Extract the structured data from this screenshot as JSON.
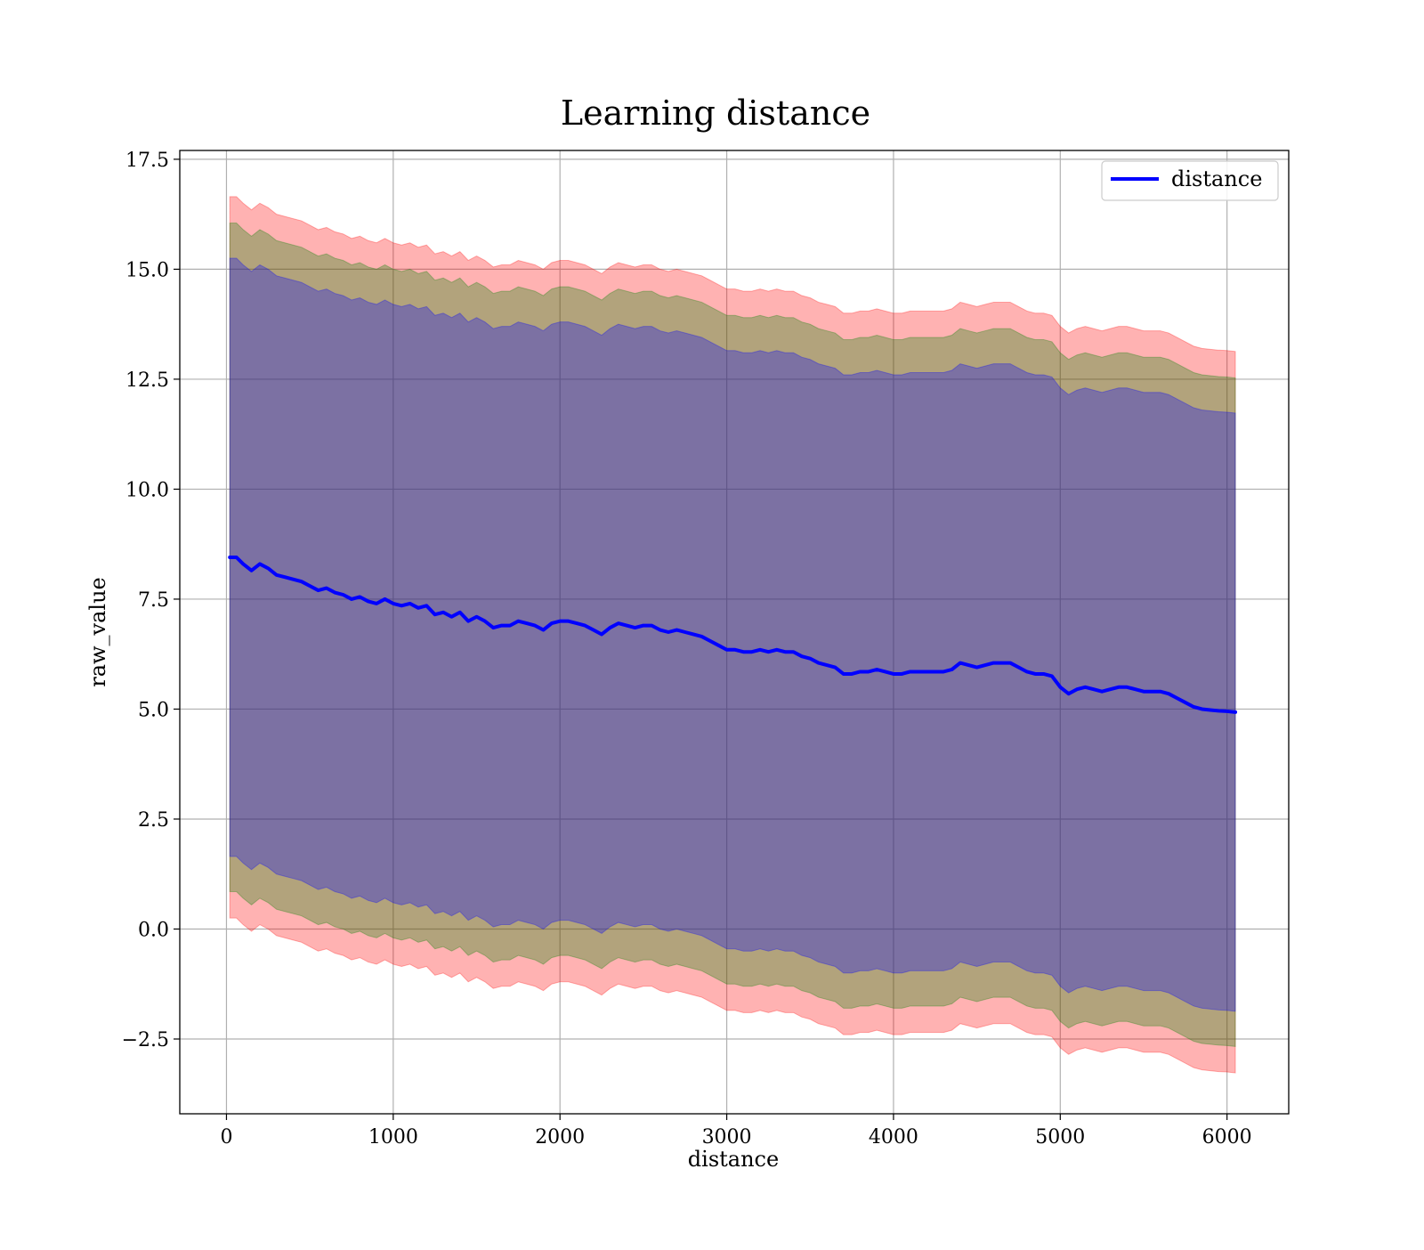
{
  "chart_data": {
    "type": "line",
    "title": "Learning distance",
    "xlabel": "distance",
    "ylabel": "raw_value",
    "xlim": [
      -280,
      6370
    ],
    "ylim": [
      -4.2,
      17.7
    ],
    "x_ticks": [
      0,
      1000,
      2000,
      3000,
      4000,
      5000,
      6000
    ],
    "x_tick_labels": [
      "0",
      "1000",
      "2000",
      "3000",
      "4000",
      "5000",
      "6000"
    ],
    "y_ticks": [
      -2.5,
      0.0,
      2.5,
      5.0,
      7.5,
      10.0,
      12.5,
      15.0,
      17.5
    ],
    "y_tick_labels": [
      "−2.5",
      "0.0",
      "2.5",
      "5.0",
      "7.5",
      "10.0",
      "12.5",
      "15.0",
      "17.5"
    ],
    "grid": true,
    "legend": {
      "placement": "top-right",
      "entries": [
        {
          "label": "distance",
          "color": "#0000ff"
        }
      ]
    },
    "series": [
      {
        "name": "distance",
        "color": "#0000ff",
        "x": [
          20,
          60,
          100,
          150,
          200,
          250,
          300,
          350,
          400,
          450,
          500,
          550,
          600,
          650,
          700,
          750,
          800,
          850,
          900,
          950,
          1000,
          1050,
          1100,
          1150,
          1200,
          1250,
          1300,
          1350,
          1400,
          1450,
          1500,
          1550,
          1600,
          1650,
          1700,
          1750,
          1800,
          1850,
          1900,
          1950,
          2000,
          2050,
          2100,
          2150,
          2200,
          2250,
          2300,
          2350,
          2400,
          2450,
          2500,
          2550,
          2600,
          2650,
          2700,
          2750,
          2800,
          2850,
          2900,
          2950,
          3000,
          3050,
          3100,
          3150,
          3200,
          3250,
          3300,
          3350,
          3400,
          3450,
          3500,
          3550,
          3600,
          3650,
          3700,
          3750,
          3800,
          3850,
          3900,
          3950,
          4000,
          4050,
          4100,
          4150,
          4200,
          4250,
          4300,
          4350,
          4400,
          4450,
          4500,
          4550,
          4600,
          4650,
          4700,
          4750,
          4800,
          4850,
          4900,
          4950,
          5000,
          5050,
          5100,
          5150,
          5200,
          5250,
          5300,
          5350,
          5400,
          5450,
          5500,
          5550,
          5600,
          5650,
          5700,
          5750,
          5800,
          5850,
          5900,
          5950,
          6000,
          6050
        ],
        "values": [
          8.45,
          8.45,
          8.3,
          8.15,
          8.3,
          8.2,
          8.05,
          8.0,
          7.95,
          7.9,
          7.8,
          7.7,
          7.75,
          7.65,
          7.6,
          7.5,
          7.55,
          7.45,
          7.4,
          7.5,
          7.4,
          7.35,
          7.4,
          7.3,
          7.35,
          7.15,
          7.2,
          7.1,
          7.2,
          7.0,
          7.1,
          7.0,
          6.85,
          6.9,
          6.9,
          7.0,
          6.95,
          6.9,
          6.8,
          6.95,
          7.0,
          7.0,
          6.95,
          6.9,
          6.8,
          6.7,
          6.85,
          6.95,
          6.9,
          6.85,
          6.9,
          6.9,
          6.8,
          6.75,
          6.8,
          6.75,
          6.7,
          6.65,
          6.55,
          6.45,
          6.35,
          6.35,
          6.3,
          6.3,
          6.35,
          6.3,
          6.35,
          6.3,
          6.3,
          6.2,
          6.15,
          6.05,
          6.0,
          5.95,
          5.8,
          5.8,
          5.85,
          5.85,
          5.9,
          5.85,
          5.8,
          5.8,
          5.85,
          5.85,
          5.85,
          5.85,
          5.85,
          5.9,
          6.05,
          6.0,
          5.95,
          6.0,
          6.05,
          6.05,
          6.05,
          5.95,
          5.85,
          5.8,
          5.8,
          5.75,
          5.5,
          5.35,
          5.45,
          5.5,
          5.45,
          5.4,
          5.45,
          5.5,
          5.5,
          5.45,
          5.4,
          5.4,
          5.4,
          5.35,
          5.25,
          5.15,
          5.05,
          5.0,
          4.98,
          4.96,
          4.95,
          4.93
        ],
        "bands": [
          {
            "color": "#ff0000",
            "opacity": 0.3,
            "offset_upper": 8.2,
            "offset_lower": 8.2
          },
          {
            "color": "#008000",
            "opacity": 0.3,
            "offset_upper": 7.6,
            "offset_lower": 7.6
          },
          {
            "color": "#0000ff",
            "opacity": 0.3,
            "offset_upper": 6.8,
            "offset_lower": 6.8
          }
        ]
      }
    ]
  }
}
